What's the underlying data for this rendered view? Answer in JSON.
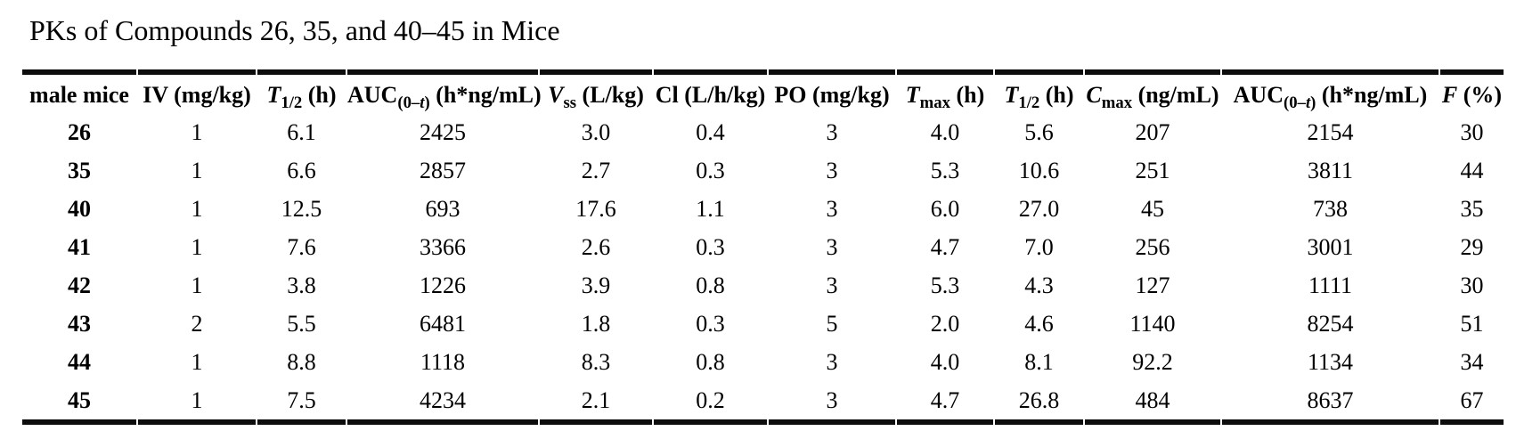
{
  "page": {
    "background_color": "#ffffff",
    "text_color": "#000000",
    "rule_color": "#0d0d0d"
  },
  "title": "PKs of Compounds 26, 35, and 40–45 in Mice",
  "table": {
    "columns": [
      {
        "id": "male-mice",
        "label": "male mice",
        "segments": [
          {
            "t": "male mice"
          }
        ]
      },
      {
        "id": "iv-dose",
        "label": "IV (mg/kg)",
        "segments": [
          {
            "t": "IV (mg/kg)"
          }
        ]
      },
      {
        "id": "iv-t-half",
        "label": "T1/2 (h)",
        "segments": [
          {
            "t": "T",
            "i": true
          },
          {
            "t": "1/2",
            "sub": true
          },
          {
            "t": " (h)"
          }
        ]
      },
      {
        "id": "iv-auc",
        "label": "AUC(0–t) (h*ng/mL)",
        "segments": [
          {
            "t": "AUC"
          },
          {
            "t": "(0–",
            "sub": true
          },
          {
            "t": "t",
            "sub": true,
            "i": true
          },
          {
            "t": ")",
            "sub": true
          },
          {
            "t": " (h*ng/mL)"
          }
        ]
      },
      {
        "id": "vss",
        "label": "Vss (L/kg)",
        "segments": [
          {
            "t": "V",
            "i": true
          },
          {
            "t": "ss",
            "sub": true
          },
          {
            "t": " (L/kg)"
          }
        ]
      },
      {
        "id": "cl",
        "label": "Cl (L/h/kg)",
        "segments": [
          {
            "t": "Cl (L/h/kg)"
          }
        ]
      },
      {
        "id": "po-dose",
        "label": "PO (mg/kg)",
        "segments": [
          {
            "t": "PO (mg/kg)"
          }
        ]
      },
      {
        "id": "tmax",
        "label": "Tmax (h)",
        "segments": [
          {
            "t": "T",
            "i": true
          },
          {
            "t": "max",
            "sub": true
          },
          {
            "t": " (h)"
          }
        ]
      },
      {
        "id": "po-t-half",
        "label": "T1/2 (h)",
        "segments": [
          {
            "t": "T",
            "i": true
          },
          {
            "t": "1/2",
            "sub": true
          },
          {
            "t": " (h)"
          }
        ]
      },
      {
        "id": "cmax",
        "label": "Cmax (ng/mL)",
        "segments": [
          {
            "t": "C",
            "i": true
          },
          {
            "t": "max",
            "sub": true
          },
          {
            "t": " (ng/mL)"
          }
        ]
      },
      {
        "id": "po-auc",
        "label": "AUC(0–t) (h*ng/mL)",
        "segments": [
          {
            "t": "AUC"
          },
          {
            "t": "(0–",
            "sub": true
          },
          {
            "t": "t",
            "sub": true,
            "i": true
          },
          {
            "t": ")",
            "sub": true
          },
          {
            "t": " (h*ng/mL)"
          }
        ]
      },
      {
        "id": "f-percent",
        "label": "F (%)",
        "segments": [
          {
            "t": "F",
            "i": true
          },
          {
            "t": " (%)"
          }
        ]
      }
    ],
    "rows": [
      {
        "compound": "26",
        "values": [
          "1",
          "6.1",
          "2425",
          "3.0",
          "0.4",
          "3",
          "4.0",
          "5.6",
          "207",
          "2154",
          "30"
        ]
      },
      {
        "compound": "35",
        "values": [
          "1",
          "6.6",
          "2857",
          "2.7",
          "0.3",
          "3",
          "5.3",
          "10.6",
          "251",
          "3811",
          "44"
        ]
      },
      {
        "compound": "40",
        "values": [
          "1",
          "12.5",
          "693",
          "17.6",
          "1.1",
          "3",
          "6.0",
          "27.0",
          "45",
          "738",
          "35"
        ]
      },
      {
        "compound": "41",
        "values": [
          "1",
          "7.6",
          "3366",
          "2.6",
          "0.3",
          "3",
          "4.7",
          "7.0",
          "256",
          "3001",
          "29"
        ]
      },
      {
        "compound": "42",
        "values": [
          "1",
          "3.8",
          "1226",
          "3.9",
          "0.8",
          "3",
          "5.3",
          "4.3",
          "127",
          "1111",
          "30"
        ]
      },
      {
        "compound": "43",
        "values": [
          "2",
          "5.5",
          "6481",
          "1.8",
          "0.3",
          "5",
          "2.0",
          "4.6",
          "1140",
          "8254",
          "51"
        ]
      },
      {
        "compound": "44",
        "values": [
          "1",
          "8.8",
          "1118",
          "8.3",
          "0.8",
          "3",
          "4.0",
          "8.1",
          "92.2",
          "1134",
          "34"
        ]
      },
      {
        "compound": "45",
        "values": [
          "1",
          "7.5",
          "4234",
          "2.1",
          "0.2",
          "3",
          "4.7",
          "26.8",
          "484",
          "8637",
          "67"
        ]
      }
    ]
  }
}
